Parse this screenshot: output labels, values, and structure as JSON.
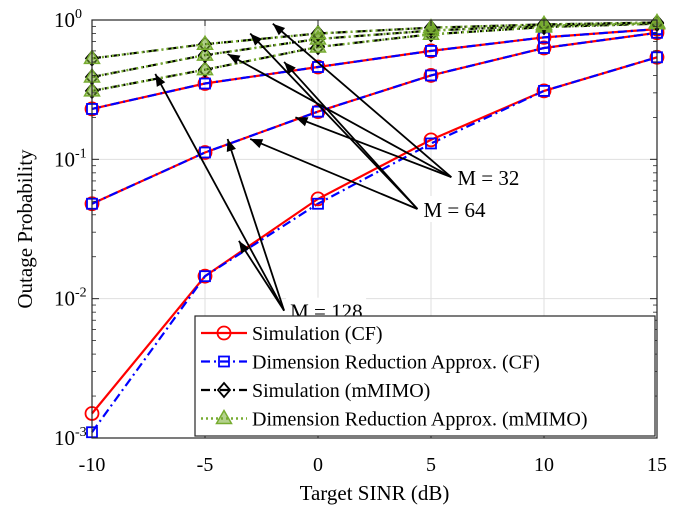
{
  "chart_data": {
    "type": "line",
    "xlabel": "Target SINR (dB)",
    "ylabel": "Outage Probability",
    "xlim": [
      -10,
      15
    ],
    "ylim": [
      0.001,
      1
    ],
    "yscale": "log",
    "grid": true,
    "legend_position": "bottom-right",
    "x_ticks": [
      {
        "value": -10,
        "label": "-10"
      },
      {
        "value": -5,
        "label": "-5"
      },
      {
        "value": 0,
        "label": "0"
      },
      {
        "value": 5,
        "label": "5"
      },
      {
        "value": 10,
        "label": "10"
      },
      {
        "value": 15,
        "label": "15"
      }
    ],
    "y_ticks": [
      {
        "value": 0.001,
        "base": "10",
        "exp": "-3"
      },
      {
        "value": 0.01,
        "base": "10",
        "exp": "-2"
      },
      {
        "value": 0.1,
        "base": "10",
        "exp": "-1"
      },
      {
        "value": 1,
        "base": "10",
        "exp": "0"
      }
    ],
    "x": [
      -10,
      -5,
      0,
      5,
      10,
      15
    ],
    "series": [
      {
        "name": "Simulation (CF)",
        "color": "#ff0000",
        "style": "solid",
        "marker": "circle",
        "legend": true,
        "values": [
          0.0015,
          0.0145,
          0.052,
          0.138,
          0.31,
          0.54
        ]
      },
      {
        "name": "Dimension Reduction Approx. (CF)",
        "color": "#0000ff",
        "style": "dashdot",
        "marker": "square",
        "legend": true,
        "values": [
          0.0011,
          0.0145,
          0.048,
          0.13,
          0.31,
          0.54
        ]
      },
      {
        "color": "#ff0000",
        "style": "solid",
        "marker": "circle",
        "legend": false,
        "values": [
          0.048,
          0.112,
          0.22,
          0.4,
          0.63,
          0.81
        ]
      },
      {
        "color": "#0000ff",
        "style": "dashdot",
        "marker": "square",
        "legend": false,
        "values": [
          0.048,
          0.112,
          0.22,
          0.4,
          0.63,
          0.81
        ]
      },
      {
        "color": "#ff0000",
        "style": "solid",
        "marker": "circle",
        "legend": false,
        "values": [
          0.23,
          0.35,
          0.46,
          0.6,
          0.75,
          0.86
        ]
      },
      {
        "color": "#0000ff",
        "style": "dashdot",
        "marker": "square",
        "legend": false,
        "values": [
          0.23,
          0.35,
          0.46,
          0.6,
          0.75,
          0.86
        ]
      },
      {
        "name": "Simulation (mMIMO)",
        "color": "#000000",
        "style": "dashdot",
        "marker": "diamond",
        "legend": true,
        "values": [
          0.31,
          0.44,
          0.64,
          0.79,
          0.89,
          0.94
        ]
      },
      {
        "name": "Dimension Reduction Approx. (mMIMO)",
        "color": "#77ac30",
        "style": "dotted",
        "marker": "triangle",
        "legend": true,
        "values": [
          0.31,
          0.44,
          0.64,
          0.79,
          0.89,
          0.94
        ]
      },
      {
        "color": "#000000",
        "style": "dashdot",
        "marker": "diamond",
        "legend": false,
        "values": [
          0.39,
          0.56,
          0.73,
          0.84,
          0.91,
          0.95
        ]
      },
      {
        "color": "#77ac30",
        "style": "dotted",
        "marker": "triangle",
        "legend": false,
        "values": [
          0.39,
          0.56,
          0.73,
          0.84,
          0.91,
          0.95
        ]
      },
      {
        "color": "#000000",
        "style": "dashdot",
        "marker": "diamond",
        "legend": false,
        "values": [
          0.53,
          0.67,
          0.8,
          0.88,
          0.93,
          0.96
        ]
      },
      {
        "color": "#77ac30",
        "style": "dotted",
        "marker": "triangle",
        "legend": false,
        "values": [
          0.53,
          0.67,
          0.8,
          0.88,
          0.93,
          0.96
        ]
      }
    ],
    "annotations": [
      {
        "text": "M = 32",
        "anchor": {
          "x": 5.9,
          "y": 0.0745
        },
        "targets": [
          {
            "x": -2,
            "y": 0.94
          },
          {
            "x": -4,
            "y": 0.57
          },
          {
            "x": -1,
            "y": 0.2
          }
        ]
      },
      {
        "text": "M = 64",
        "anchor": {
          "x": 4.4,
          "y": 0.044
        },
        "targets": [
          {
            "x": -3,
            "y": 0.8
          },
          {
            "x": -1.5,
            "y": 0.5
          },
          {
            "x": -3,
            "y": 0.14
          }
        ]
      },
      {
        "text": "M = 128",
        "anchor": {
          "x": -1.5,
          "y": 0.0082
        },
        "targets": [
          {
            "x": -7.2,
            "y": 0.41
          },
          {
            "x": -4,
            "y": 0.14
          },
          {
            "x": -3.5,
            "y": 0.026
          }
        ]
      }
    ]
  }
}
